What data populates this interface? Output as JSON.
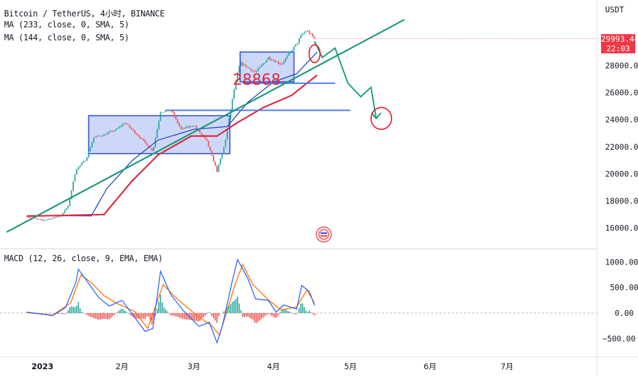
{
  "header": {
    "symbol_line": "Bitcoin / TetherUS, 4小时, BINANCE",
    "ma1_line": "MA (233, close, 0, SMA, 5)",
    "ma2_line": "MA (144, close, 0, SMA, 5)",
    "currency": "USDT"
  },
  "price_marker": {
    "price": "29993.44",
    "countdown": "22:03",
    "color": "#f23645"
  },
  "annotation": {
    "text": "28868",
    "color": "#e0263a"
  },
  "macd_panel": {
    "legend": "MACD (12, 26, close, 9, EMA, EMA)"
  },
  "colors": {
    "up": "#26a69a",
    "down": "#ef5350",
    "ma233": "#1f3fbf",
    "ma144": "#e0263a",
    "trendline": "#15967a",
    "projection": "#1a9e80",
    "box_fill": "#b8c8f5",
    "box_stroke": "#2b4fd8",
    "macd_line": "#2962ff",
    "signal_line": "#ff6d00",
    "hist_up": "#26a69a",
    "hist_down": "#ef5350"
  },
  "chart_data": [
    {
      "type": "candlestick",
      "title": "Bitcoin / TetherUS, 4小时, BINANCE",
      "x_ticks": [
        "2023",
        "2月",
        "3月",
        "4月",
        "5月",
        "6月",
        "7月"
      ],
      "y_ticks": [
        16000,
        18000,
        20000,
        22000,
        24000,
        26000,
        28000
      ],
      "y_range": [
        15000,
        31200
      ],
      "grid": false,
      "price_path": [
        [
          "2022-12-26",
          16850
        ],
        [
          "2023-01-01",
          16550
        ],
        [
          "2023-01-08",
          16900
        ],
        [
          "2023-01-11",
          17600
        ],
        [
          "2023-01-14",
          20300
        ],
        [
          "2023-01-18",
          21100
        ],
        [
          "2023-01-21",
          22700
        ],
        [
          "2023-01-25",
          22900
        ],
        [
          "2023-01-30",
          23300
        ],
        [
          "2023-02-02",
          23800
        ],
        [
          "2023-02-09",
          22500
        ],
        [
          "2023-02-13",
          21700
        ],
        [
          "2023-02-16",
          24600
        ],
        [
          "2023-02-20",
          24700
        ],
        [
          "2023-02-24",
          23300
        ],
        [
          "2023-03-01",
          23600
        ],
        [
          "2023-03-06",
          22400
        ],
        [
          "2023-03-10",
          20200
        ],
        [
          "2023-03-13",
          22200
        ],
        [
          "2023-03-17",
          26600
        ],
        [
          "2023-03-19",
          28200
        ],
        [
          "2023-03-25",
          27500
        ],
        [
          "2023-03-30",
          28600
        ],
        [
          "2023-04-04",
          28100
        ],
        [
          "2023-04-10",
          29600
        ],
        [
          "2023-04-12",
          30300
        ],
        [
          "2023-04-14",
          30600
        ],
        [
          "2023-04-16",
          30200
        ],
        [
          "2023-04-17",
          29993.44
        ]
      ],
      "series": [
        {
          "name": "MA (233, close, 0, SMA, 5)",
          "values": [
            [
              "2022-12-26",
              16920
            ],
            [
              "2023-01-20",
              16900
            ],
            [
              "2023-01-26",
              18900
            ],
            [
              "2023-02-05",
              21000
            ],
            [
              "2023-02-15",
              22500
            ],
            [
              "2023-03-01",
              23300
            ],
            [
              "2023-03-14",
              23500
            ],
            [
              "2023-03-22",
              25300
            ],
            [
              "2023-04-01",
              26800
            ],
            [
              "2023-04-10",
              27400
            ],
            [
              "2023-04-18",
              29000
            ]
          ]
        },
        {
          "name": "MA (144, close, 0, SMA, 5)",
          "values": [
            [
              "2022-12-26",
              16880
            ],
            [
              "2023-01-25",
              17000
            ],
            [
              "2023-02-05",
              19500
            ],
            [
              "2023-02-15",
              21400
            ],
            [
              "2023-02-28",
              22800
            ],
            [
              "2023-03-10",
              22800
            ],
            [
              "2023-03-18",
              23800
            ],
            [
              "2023-03-28",
              24900
            ],
            [
              "2023-04-08",
              25800
            ],
            [
              "2023-04-18",
              27300
            ]
          ]
        }
      ],
      "drawings": {
        "trendline": [
          [
            "2022-12-18",
            15700
          ],
          [
            "2023-05-22",
            31400
          ]
        ],
        "horizontal_lines": [
          [
            24700,
            "2023-02-18",
            "2023-05-01"
          ],
          [
            26700,
            "2023-03-20",
            "2023-04-25"
          ]
        ],
        "boxes": [
          [
            "2023-01-19",
            "2023-03-15",
            24300,
            21500
          ],
          [
            "2023-03-19",
            "2023-04-09",
            29000,
            26800
          ]
        ],
        "projection_path": [
          [
            "2023-04-17",
            29800
          ],
          [
            "2023-04-20",
            28600
          ],
          [
            "2023-04-25",
            29300
          ],
          [
            "2023-04-30",
            26700
          ],
          [
            "2023-05-05",
            25700
          ],
          [
            "2023-05-09",
            26400
          ],
          [
            "2023-05-11",
            24100
          ]
        ],
        "target_circle": [
          "2023-05-13",
          24100
        ]
      }
    },
    {
      "type": "line",
      "title": "MACD (12, 26, close, 9, EMA, EMA)",
      "y_ticks": [
        1000,
        500,
        0,
        -500
      ],
      "y_range": [
        -900,
        1150
      ],
      "series": [
        {
          "name": "MACD",
          "values": [
            [
              "2022-12-26",
              20
            ],
            [
              "2023-01-05",
              -50
            ],
            [
              "2023-01-10",
              110
            ],
            [
              "2023-01-14",
              600
            ],
            [
              "2023-01-15",
              860
            ],
            [
              "2023-01-19",
              580
            ],
            [
              "2023-01-23",
              300
            ],
            [
              "2023-01-27",
              140
            ],
            [
              "2023-02-01",
              250
            ],
            [
              "2023-02-05",
              -20
            ],
            [
              "2023-02-10",
              -360
            ],
            [
              "2023-02-13",
              -300
            ],
            [
              "2023-02-16",
              820
            ],
            [
              "2023-02-20",
              360
            ],
            [
              "2023-02-25",
              40
            ],
            [
              "2023-03-03",
              -260
            ],
            [
              "2023-03-07",
              -180
            ],
            [
              "2023-03-10",
              -580
            ],
            [
              "2023-03-12",
              -270
            ],
            [
              "2023-03-16",
              640
            ],
            [
              "2023-03-18",
              1050
            ],
            [
              "2023-03-22",
              680
            ],
            [
              "2023-03-25",
              280
            ],
            [
              "2023-03-30",
              250
            ],
            [
              "2023-04-02",
              20
            ],
            [
              "2023-04-05",
              160
            ],
            [
              "2023-04-10",
              80
            ],
            [
              "2023-04-12",
              540
            ],
            [
              "2023-04-15",
              420
            ],
            [
              "2023-04-17",
              150
            ]
          ]
        },
        {
          "name": "Signal",
          "values": [
            [
              "2022-12-26",
              10
            ],
            [
              "2023-01-05",
              -40
            ],
            [
              "2023-01-12",
              200
            ],
            [
              "2023-01-16",
              750
            ],
            [
              "2023-01-20",
              600
            ],
            [
              "2023-01-25",
              340
            ],
            [
              "2023-01-30",
              190
            ],
            [
              "2023-02-06",
              30
            ],
            [
              "2023-02-11",
              -300
            ],
            [
              "2023-02-17",
              560
            ],
            [
              "2023-02-22",
              300
            ],
            [
              "2023-03-01",
              0
            ],
            [
              "2023-03-08",
              -250
            ],
            [
              "2023-03-11",
              -430
            ],
            [
              "2023-03-17",
              560
            ],
            [
              "2023-03-20",
              950
            ],
            [
              "2023-03-24",
              560
            ],
            [
              "2023-03-30",
              260
            ],
            [
              "2023-04-04",
              60
            ],
            [
              "2023-04-10",
              120
            ],
            [
              "2023-04-14",
              450
            ],
            [
              "2023-04-17",
              200
            ]
          ]
        }
      ]
    }
  ]
}
